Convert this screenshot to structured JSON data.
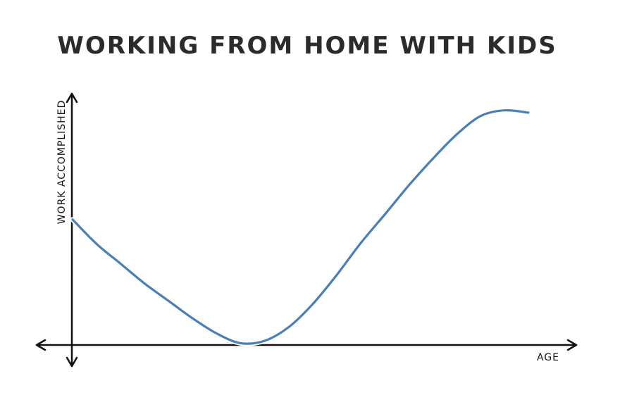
{
  "chart_data": {
    "type": "line",
    "title": "WORKING FROM HOME WITH KIDS",
    "xlabel": "AGE",
    "ylabel": "WORK ACCOMPLISHED",
    "xlim": [
      0,
      100
    ],
    "ylim": [
      0,
      100
    ],
    "grid": false,
    "legend": "none",
    "series": [
      {
        "color": "#4a7fb5",
        "x": [
          0,
          5,
          10,
          15,
          20,
          25,
          30,
          35,
          40,
          45,
          50,
          55,
          60,
          65,
          70,
          75,
          80,
          85,
          90,
          95
        ],
        "y": [
          54,
          43.5,
          35,
          26.5,
          19,
          11.5,
          5,
          0.8,
          1.8,
          7.6,
          17.5,
          30,
          43.7,
          56,
          68.5,
          80,
          90.5,
          98.5,
          101,
          100
        ]
      }
    ]
  }
}
